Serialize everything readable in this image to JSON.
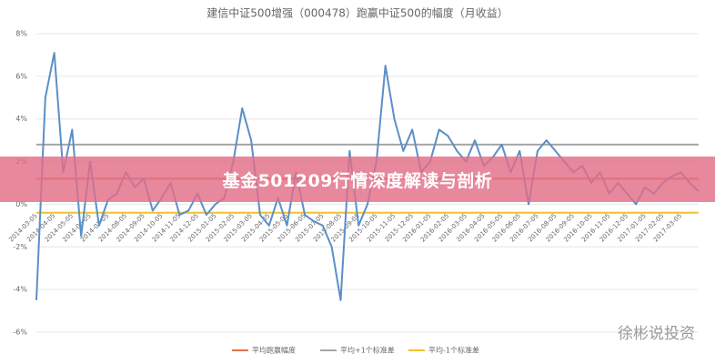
{
  "chart_data": {
    "type": "line",
    "title": "建信中证500增强（000478）跑赢中证500的幅度（月收益）",
    "categories": [
      "2014-03-05",
      null,
      "2014-04-05",
      null,
      "2014-05-05",
      null,
      "2014-06-05",
      null,
      "2014-07-05",
      null,
      "2014-08-05",
      null,
      "2014-09-05",
      null,
      "2014-10-05",
      null,
      "2014-11-05",
      null,
      "2014-12-05",
      null,
      "2015-01-05",
      null,
      "2015-02-05",
      null,
      "2015-03-05",
      null,
      "2015-04-05",
      null,
      "2015-05-05",
      null,
      "2015-06-05",
      null,
      "2015-07-05",
      null,
      "2015-08-05",
      null,
      "2015-09-05",
      null,
      "2015-10-05",
      null,
      "2015-11-05",
      null,
      "2015-12-05",
      null,
      "2016-01-05",
      null,
      "2016-02-05",
      null,
      "2016-03-05",
      null,
      "2016-04-05",
      null,
      "2016-05-05",
      null,
      "2016-06-05",
      null,
      "2016-07-05",
      null,
      "2016-08-05",
      null,
      "2016-09-05",
      null,
      "2016-10-05",
      null,
      "2016-11-05",
      null,
      "2016-12-05",
      null,
      "2017-01-05",
      null,
      "2017-02-05",
      null,
      "2017-03-05",
      null,
      null
    ],
    "values": [
      -4.5,
      5.0,
      7.1,
      1.5,
      3.5,
      -1.5,
      2.0,
      -1.0,
      0.2,
      0.5,
      1.5,
      0.8,
      1.2,
      -0.3,
      0.3,
      1.0,
      -0.5,
      -0.3,
      0.5,
      -0.5,
      0.0,
      0.3,
      2.0,
      4.5,
      3.0,
      -0.5,
      -1.0,
      0.3,
      -1.0,
      1.5,
      -0.5,
      -0.8,
      -1.0,
      -2.0,
      -4.5,
      2.5,
      -1.0,
      0.0,
      2.0,
      6.5,
      4.0,
      2.5,
      3.5,
      1.5,
      2.0,
      3.5,
      3.2,
      2.5,
      2.0,
      3.0,
      1.8,
      2.2,
      2.8,
      1.5,
      2.5,
      0.0,
      2.5,
      3.0,
      2.5,
      2.0,
      1.5,
      1.8,
      1.0,
      1.5,
      0.5,
      1.0,
      0.5,
      0.0,
      0.8,
      0.5,
      1.0,
      1.3,
      1.5,
      1.0,
      0.6
    ],
    "color": "#5b8fc7",
    "reference_lines": [
      {
        "name": "平均跑赢幅度",
        "value": 1.2,
        "color": "#e0734a"
      },
      {
        "name": "平均+1个标准差",
        "value": 2.8,
        "color": "#a5a5a5"
      },
      {
        "name": "平均-1个标准差",
        "value": -0.4,
        "color": "#f2c02e"
      }
    ],
    "ylim": [
      -6,
      8
    ],
    "yticks": [
      {
        "value": -6,
        "label": "-6%"
      },
      {
        "value": -4,
        "label": "-4%"
      },
      {
        "value": -2,
        "label": "-2%"
      },
      {
        "value": 0,
        "label": "0%"
      },
      {
        "value": 2,
        "label": "2%"
      },
      {
        "value": 4,
        "label": "4%"
      },
      {
        "value": 6,
        "label": "6%"
      },
      {
        "value": 8,
        "label": "8%"
      }
    ],
    "grid": true
  },
  "overlay": {
    "banner": "基金501209行情深度解读与剖析",
    "watermark": "徐彬说投资"
  }
}
